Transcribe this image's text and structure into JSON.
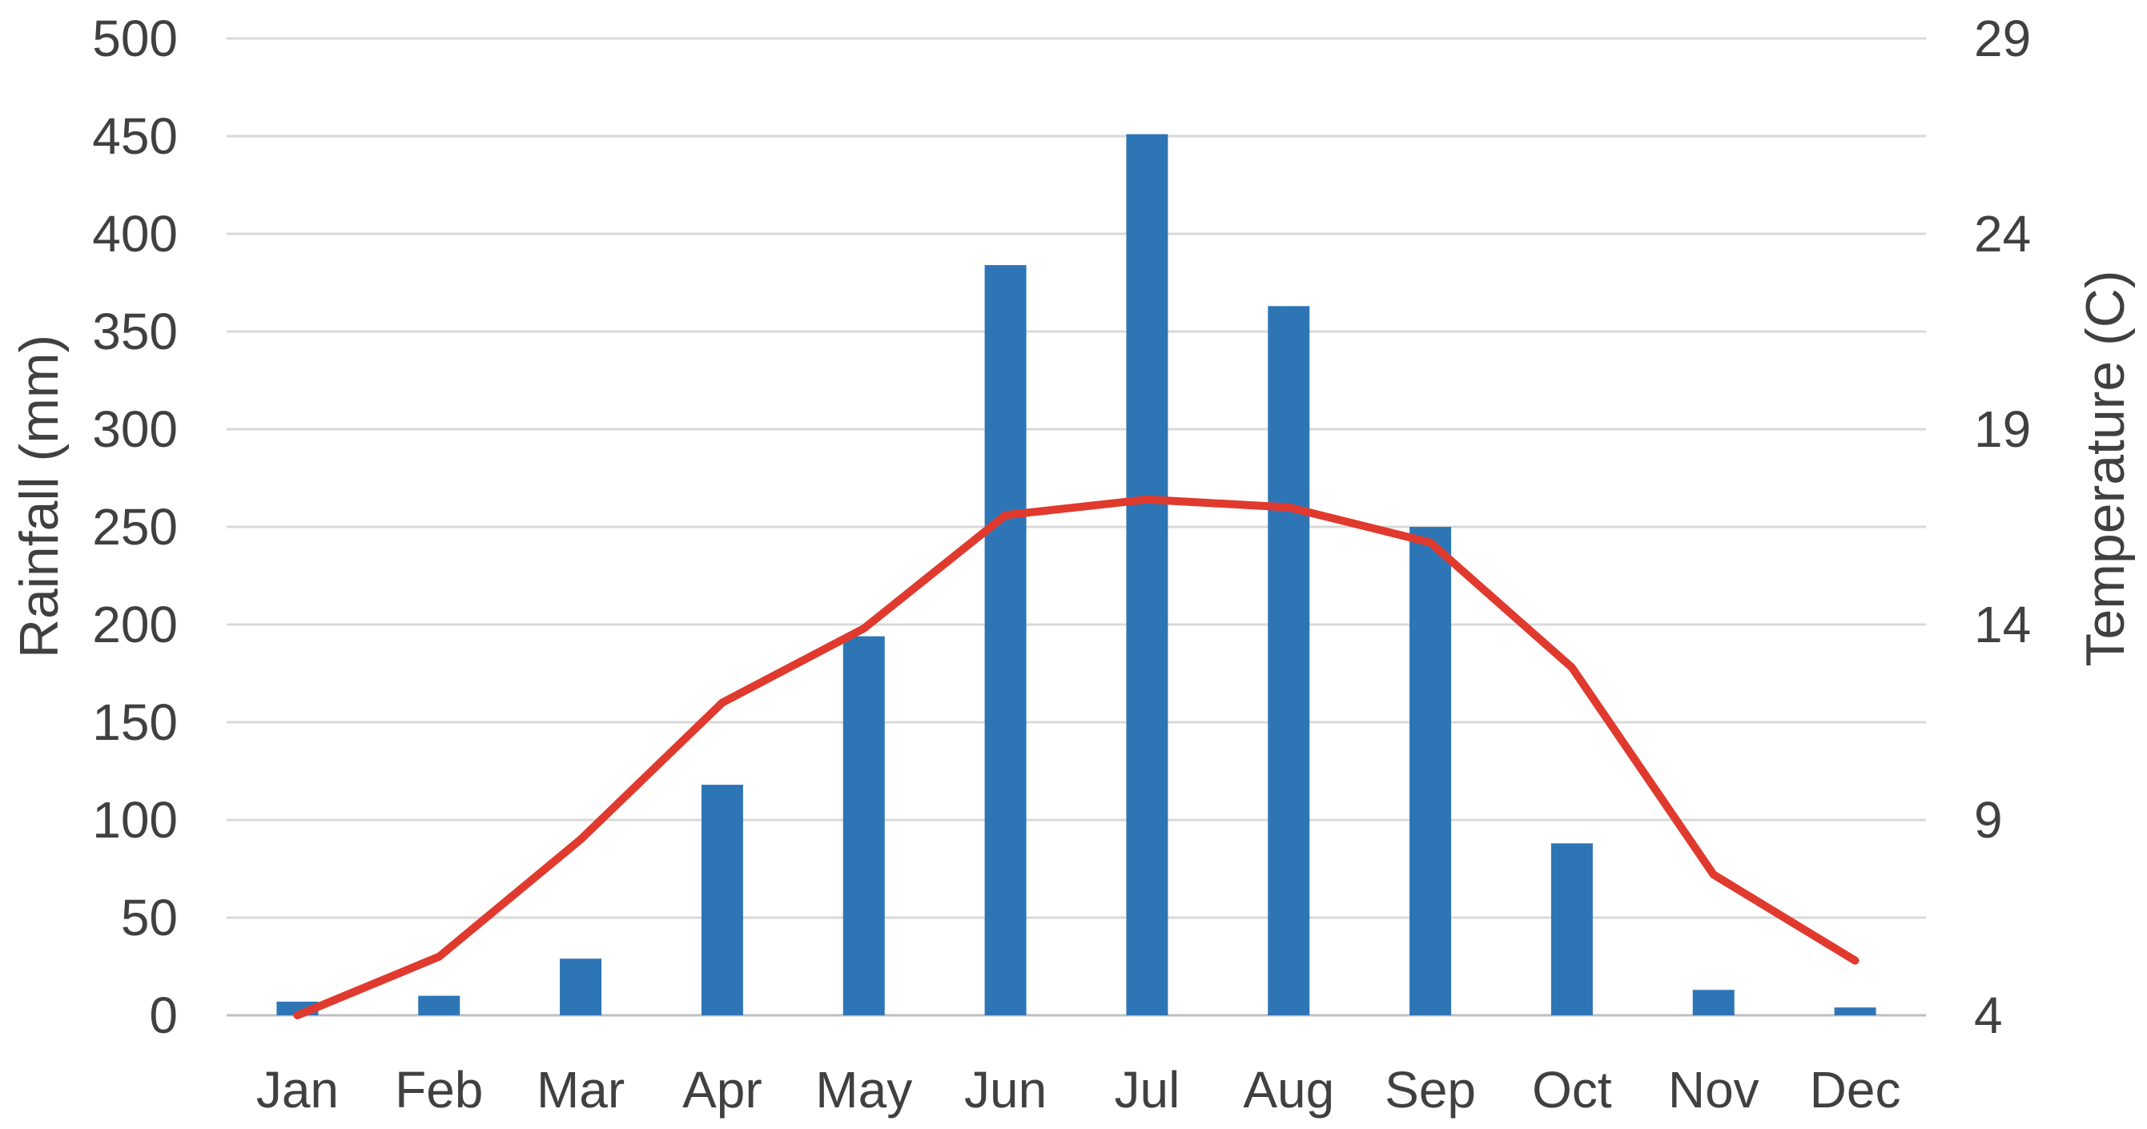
{
  "chart_data": {
    "type": "combo-bar-line",
    "categories": [
      "Jan",
      "Feb",
      "Mar",
      "Apr",
      "May",
      "Jun",
      "Jul",
      "Aug",
      "Sep",
      "Oct",
      "Nov",
      "Dec"
    ],
    "series": [
      {
        "name": "Rainfall (mm)",
        "type": "bar",
        "axis": "left",
        "color": "#2E75B6",
        "values": [
          7,
          10,
          29,
          118,
          194,
          384,
          451,
          363,
          250,
          88,
          13,
          4
        ]
      },
      {
        "name": "Temperature (C)",
        "type": "line",
        "axis": "right",
        "color": "#E03A2E",
        "values": [
          4.0,
          5.5,
          8.5,
          12.0,
          13.9,
          16.8,
          17.2,
          17.0,
          16.1,
          12.9,
          7.6,
          5.4
        ]
      }
    ],
    "left_axis": {
      "label": "Rainfall (mm)",
      "min": 0,
      "max": 500,
      "tick_step": 50,
      "ticks": [
        500,
        450,
        400,
        350,
        300,
        250,
        200,
        150,
        100,
        50,
        0
      ]
    },
    "right_axis": {
      "label": "Temperature (C)",
      "min": 4,
      "max": 29,
      "tick_step": 5,
      "ticks": [
        29,
        24,
        19,
        14,
        9,
        4
      ]
    },
    "grid": true,
    "legend": false,
    "title": ""
  },
  "colors": {
    "bar": "#2E75B6",
    "line": "#E03A2E",
    "gridline": "#D9D9D9",
    "axis_line": "#BFBFBF",
    "text": "#404040",
    "background": "#FFFFFF"
  }
}
